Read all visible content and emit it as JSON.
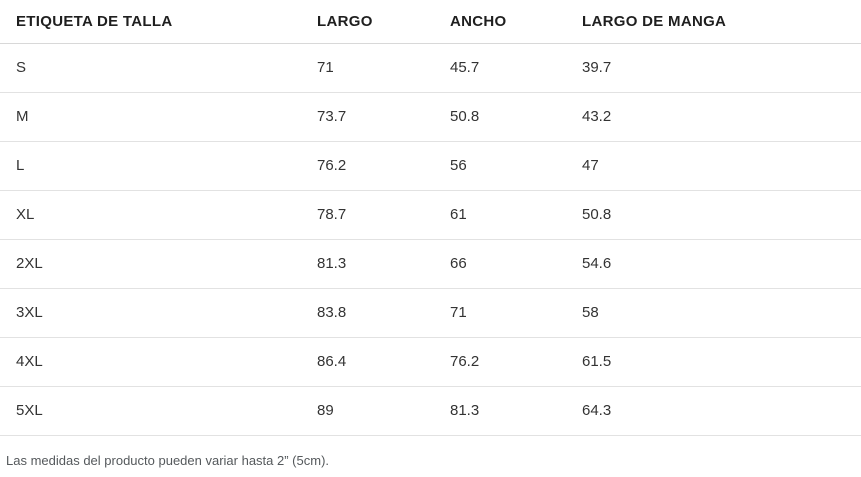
{
  "table": {
    "columns": [
      {
        "key": "size",
        "label": "ETIQUETA DE TALLA"
      },
      {
        "key": "largo",
        "label": "LARGO"
      },
      {
        "key": "ancho",
        "label": "ANCHO"
      },
      {
        "key": "manga",
        "label": "LARGO DE MANGA"
      }
    ],
    "rows": [
      {
        "size": "S",
        "largo": "71",
        "ancho": "45.7",
        "manga": "39.7"
      },
      {
        "size": "M",
        "largo": "73.7",
        "ancho": "50.8",
        "manga": "43.2"
      },
      {
        "size": "L",
        "largo": "76.2",
        "ancho": "56",
        "manga": "47"
      },
      {
        "size": "XL",
        "largo": "78.7",
        "ancho": "61",
        "manga": "50.8"
      },
      {
        "size": "2XL",
        "largo": "81.3",
        "ancho": "66",
        "manga": "54.6"
      },
      {
        "size": "3XL",
        "largo": "83.8",
        "ancho": "71",
        "manga": "58"
      },
      {
        "size": "4XL",
        "largo": "86.4",
        "ancho": "76.2",
        "manga": "61.5"
      },
      {
        "size": "5XL",
        "largo": "89",
        "ancho": "81.3",
        "manga": "64.3"
      }
    ]
  },
  "footnote": "Las medidas del producto pueden variar hasta 2” (5cm).",
  "colors": {
    "header_text": "#1f1f1f",
    "body_text": "#333333",
    "footnote_text": "#55595c",
    "header_border": "#d8d8d8",
    "row_border": "#e2e2e2",
    "background": "#ffffff"
  }
}
